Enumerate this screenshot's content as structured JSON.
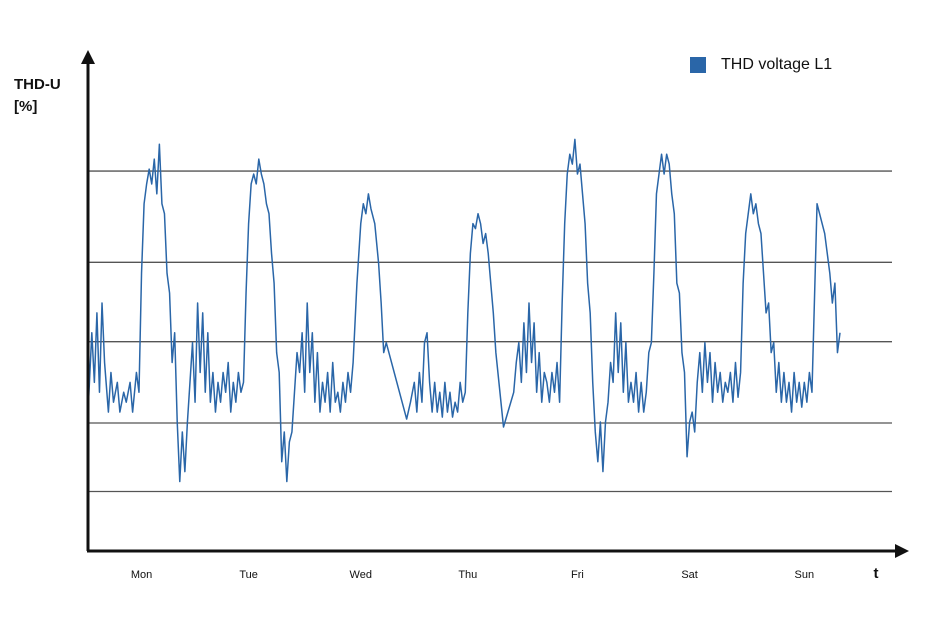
{
  "chart_data": {
    "type": "line",
    "ylabel": "THD-U",
    "yunit": "[%]",
    "xlabel": "t",
    "xlim": [
      0.1,
      6.51
    ],
    "ylim": [
      0,
      50
    ],
    "gridlines": [
      38.3,
      29.1,
      21.1,
      12.9,
      6.0
    ],
    "grid": true,
    "legend": "top-right",
    "xticks": [
      {
        "value": 0.52,
        "label": "Mon"
      },
      {
        "value": 1.36,
        "label": "Tue"
      },
      {
        "value": 2.24,
        "label": "Wed"
      },
      {
        "value": 3.08,
        "label": "Thu"
      },
      {
        "value": 3.94,
        "label": "Fri"
      },
      {
        "value": 4.82,
        "label": "Sat"
      },
      {
        "value": 5.72,
        "label": "Sun"
      }
    ],
    "x": [
      0.1,
      0.13,
      0.15,
      0.17,
      0.19,
      0.21,
      0.23,
      0.26,
      0.28,
      0.3,
      0.33,
      0.35,
      0.38,
      0.4,
      0.43,
      0.45,
      0.48,
      0.5,
      0.52,
      0.54,
      0.56,
      0.58,
      0.6,
      0.62,
      0.64,
      0.66,
      0.68,
      0.7,
      0.72,
      0.74,
      0.76,
      0.78,
      0.8,
      0.82,
      0.84,
      0.86,
      0.88,
      0.9,
      0.92,
      0.94,
      0.96,
      0.98,
      1.0,
      1.02,
      1.04,
      1.06,
      1.08,
      1.1,
      1.12,
      1.14,
      1.16,
      1.18,
      1.2,
      1.22,
      1.24,
      1.26,
      1.28,
      1.3,
      1.32,
      1.34,
      1.36,
      1.38,
      1.4,
      1.42,
      1.44,
      1.46,
      1.48,
      1.5,
      1.52,
      1.54,
      1.56,
      1.58,
      1.6,
      1.62,
      1.64,
      1.66,
      1.68,
      1.7,
      1.72,
      1.74,
      1.76,
      1.78,
      1.8,
      1.82,
      1.84,
      1.86,
      1.88,
      1.9,
      1.92,
      1.94,
      1.96,
      1.98,
      2.0,
      2.02,
      2.04,
      2.06,
      2.08,
      2.1,
      2.12,
      2.14,
      2.16,
      2.18,
      2.21,
      2.24,
      2.26,
      2.28,
      2.3,
      2.32,
      2.35,
      2.38,
      2.4,
      2.42,
      2.44,
      2.6,
      2.63,
      2.66,
      2.68,
      2.7,
      2.72,
      2.74,
      2.76,
      2.78,
      2.8,
      2.82,
      2.84,
      2.86,
      2.88,
      2.9,
      2.92,
      2.94,
      2.96,
      2.98,
      3.0,
      3.02,
      3.04,
      3.06,
      3.08,
      3.1,
      3.12,
      3.14,
      3.16,
      3.18,
      3.2,
      3.22,
      3.24,
      3.26,
      3.28,
      3.3,
      3.36,
      3.44,
      3.46,
      3.48,
      3.5,
      3.52,
      3.54,
      3.56,
      3.58,
      3.6,
      3.62,
      3.64,
      3.66,
      3.68,
      3.7,
      3.72,
      3.74,
      3.76,
      3.78,
      3.8,
      3.82,
      3.84,
      3.86,
      3.88,
      3.9,
      3.92,
      3.94,
      3.96,
      3.98,
      4.0,
      4.02,
      4.04,
      4.06,
      4.08,
      4.1,
      4.12,
      4.14,
      4.16,
      4.18,
      4.2,
      4.22,
      4.24,
      4.26,
      4.28,
      4.3,
      4.32,
      4.34,
      4.36,
      4.38,
      4.4,
      4.42,
      4.44,
      4.46,
      4.48,
      4.5,
      4.52,
      4.54,
      4.56,
      4.58,
      4.6,
      4.62,
      4.64,
      4.66,
      4.68,
      4.7,
      4.72,
      4.74,
      4.76,
      4.78,
      4.8,
      4.82,
      4.84,
      4.86,
      4.88,
      4.9,
      4.92,
      4.94,
      4.96,
      4.98,
      5.0,
      5.02,
      5.04,
      5.06,
      5.08,
      5.1,
      5.12,
      5.14,
      5.16,
      5.18,
      5.2,
      5.22,
      5.24,
      5.26,
      5.28,
      5.3,
      5.32,
      5.34,
      5.36,
      5.38,
      5.4,
      5.42,
      5.44,
      5.46,
      5.48,
      5.5,
      5.52,
      5.54,
      5.56,
      5.58,
      5.6,
      5.62,
      5.64,
      5.66,
      5.68,
      5.7,
      5.72,
      5.74,
      5.76,
      5.78,
      5.82,
      5.88,
      5.92,
      5.94,
      5.96,
      5.98,
      6.0
    ],
    "series": [
      {
        "name": "THD voltage L1",
        "color": "#2a66a8",
        "values": [
          14,
          22,
          17,
          24,
          16,
          25,
          19,
          14,
          18,
          15,
          17,
          14,
          16,
          15,
          17,
          14,
          18,
          16,
          28,
          35,
          37,
          38.5,
          37,
          39.5,
          36,
          41,
          35,
          34,
          28,
          26,
          19,
          22,
          13,
          7,
          12,
          8,
          13,
          17,
          21,
          15,
          25,
          18,
          24,
          16,
          22,
          15,
          18,
          14,
          17,
          15,
          18,
          16,
          19,
          14,
          17,
          15,
          18,
          16,
          17,
          26,
          33,
          37,
          38,
          37,
          39.5,
          38,
          37,
          35,
          34,
          30,
          27,
          20,
          18,
          9,
          12,
          7,
          11,
          12,
          16,
          20,
          18,
          22,
          16,
          25,
          18,
          22,
          15,
          20,
          14,
          17,
          15,
          18,
          14,
          19,
          15,
          16,
          14,
          17,
          15,
          18,
          16,
          19,
          27,
          33,
          35,
          34,
          36,
          34.5,
          33,
          29,
          25,
          20,
          21,
          13.3,
          15,
          17,
          14,
          18,
          15,
          21,
          22,
          17,
          14,
          17,
          14,
          16,
          13.5,
          17,
          14,
          16,
          13.5,
          15,
          14,
          17,
          15,
          16,
          24,
          30,
          33,
          32.5,
          34,
          33,
          31,
          32,
          30,
          27,
          24,
          20,
          12.5,
          16,
          19,
          21,
          17,
          23,
          18,
          25,
          19,
          23,
          16,
          20,
          15,
          18,
          17,
          15,
          18,
          16,
          19,
          15,
          25,
          33,
          38,
          40,
          39,
          41.5,
          38,
          39,
          36,
          33,
          27,
          24,
          17,
          12,
          9,
          13,
          8,
          13,
          15,
          19,
          17,
          24,
          18,
          23,
          16,
          21,
          15,
          17,
          15,
          18,
          14,
          17,
          14,
          16,
          20,
          21,
          28,
          36,
          38,
          40,
          38,
          40,
          39,
          36,
          34,
          27,
          26,
          20,
          18,
          9.5,
          13,
          14,
          12,
          17,
          20,
          16,
          21,
          17,
          20,
          15,
          19,
          16,
          18,
          15,
          17,
          16,
          18,
          15,
          19,
          15.5,
          18,
          27,
          32,
          34,
          36,
          34,
          35,
          33,
          32,
          28,
          24,
          25,
          20,
          21,
          16,
          19,
          15,
          18,
          15,
          17,
          14,
          18,
          15,
          17,
          14.5,
          17,
          15,
          18,
          16,
          35,
          32,
          28,
          25,
          27,
          20,
          22
        ]
      }
    ]
  }
}
